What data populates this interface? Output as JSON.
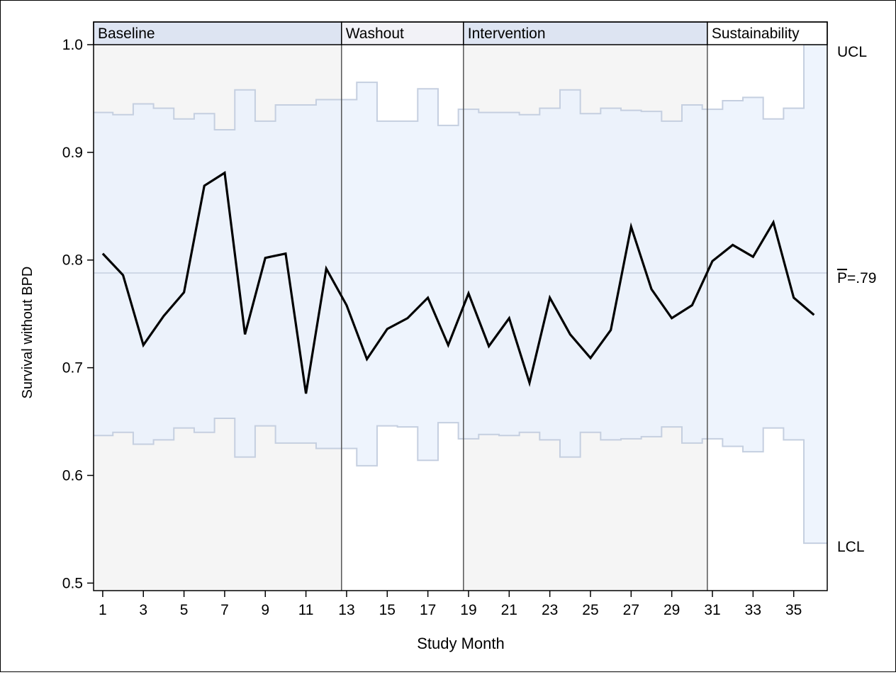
{
  "chart_data": {
    "type": "line",
    "xlabel": "Study Month",
    "ylabel": "Survival without BPD",
    "xlim": [
      0.55,
      36.65
    ],
    "ylim": [
      0.493,
      1.0
    ],
    "x_ticks": [
      1,
      3,
      5,
      7,
      9,
      11,
      13,
      15,
      17,
      19,
      21,
      23,
      25,
      27,
      29,
      31,
      33,
      35
    ],
    "y_ticks": [
      0.5,
      0.6,
      0.7,
      0.8,
      0.9,
      1.0
    ],
    "y_tick_labels": [
      "0.5",
      "0.6",
      "0.7",
      "0.8",
      "0.9",
      "1.0"
    ],
    "phases": [
      {
        "label": "Baseline",
        "start": 0.55,
        "end": 12.75,
        "header_color": "#dde4f2",
        "shade": true
      },
      {
        "label": "Washout",
        "start": 12.75,
        "end": 18.75,
        "header_color": "#f2f2f7",
        "shade": false
      },
      {
        "label": "Intervention",
        "start": 18.75,
        "end": 30.75,
        "header_color": "#dde4f2",
        "shade": true
      },
      {
        "label": "Sustainability",
        "start": 30.75,
        "end": 36.65,
        "header_color": "#ffffff",
        "shade": false
      }
    ],
    "center_line": {
      "value": 0.788,
      "label": "P",
      "label_suffix": "=.79"
    },
    "ucl_label": "UCL",
    "lcl_label": "LCL",
    "x": [
      1,
      2,
      3,
      4,
      5,
      6,
      7,
      8,
      9,
      10,
      11,
      12,
      13,
      14,
      15,
      16,
      17,
      18,
      19,
      20,
      21,
      22,
      23,
      24,
      25,
      26,
      27,
      28,
      29,
      30,
      31,
      32,
      33,
      34,
      35,
      36
    ],
    "values": [
      0.806,
      0.786,
      0.721,
      0.748,
      0.77,
      0.869,
      0.881,
      0.731,
      0.802,
      0.806,
      0.676,
      0.792,
      0.758,
      0.708,
      0.736,
      0.746,
      0.765,
      0.721,
      0.769,
      0.72,
      0.746,
      0.686,
      0.765,
      0.731,
      0.709,
      0.735,
      0.831,
      0.773,
      0.746,
      0.758,
      0.799,
      0.814,
      0.803,
      0.835,
      0.765,
      0.749
    ],
    "ucl": [
      0.937,
      0.935,
      0.945,
      0.941,
      0.931,
      0.936,
      0.921,
      0.958,
      0.929,
      0.944,
      0.944,
      0.949,
      0.949,
      0.965,
      0.929,
      0.929,
      0.959,
      0.925,
      0.94,
      0.937,
      0.937,
      0.935,
      0.941,
      0.958,
      0.936,
      0.941,
      0.939,
      0.938,
      0.929,
      0.944,
      0.94,
      0.948,
      0.951,
      0.931,
      0.941,
      1.0
    ],
    "lcl": [
      0.637,
      0.64,
      0.629,
      0.633,
      0.644,
      0.64,
      0.653,
      0.617,
      0.646,
      0.63,
      0.63,
      0.625,
      0.625,
      0.609,
      0.646,
      0.645,
      0.614,
      0.649,
      0.634,
      0.638,
      0.637,
      0.64,
      0.633,
      0.617,
      0.64,
      0.633,
      0.634,
      0.636,
      0.645,
      0.63,
      0.634,
      0.627,
      0.622,
      0.644,
      0.633,
      0.537
    ],
    "colors": {
      "line": "#000000",
      "band_fill": "#e8f0fc",
      "band_stroke": "#c5cfe0",
      "phase_shade": "#f5f5f5",
      "center_line": "#c5cfe0",
      "phase_divider": "#555555"
    },
    "grid": false,
    "legend": "none"
  }
}
